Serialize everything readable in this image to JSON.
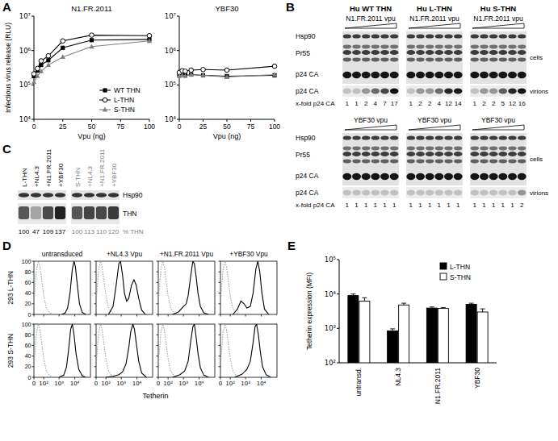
{
  "panel_labels": [
    "A",
    "B",
    "C",
    "D",
    "E"
  ],
  "chart_data": [
    {
      "type": "line",
      "title": "N1.FR.2011",
      "x_label": "Vpu (ng)",
      "y_label": "Infectious virus release (RLU)",
      "log": "y",
      "legend": "lower right",
      "xlim": [
        0,
        100
      ],
      "xticks": [
        0,
        25,
        50,
        75,
        100
      ],
      "ylim": [
        10000,
        10000000
      ],
      "yticks": [
        {
          "value": 10000,
          "label": "10⁴"
        },
        {
          "value": 100000,
          "label": "10⁵"
        },
        {
          "value": 1000000,
          "label": "10⁶"
        },
        {
          "value": 10000000,
          "label": "10⁷"
        }
      ],
      "x": [
        0,
        3.125,
        6.25,
        12.5,
        25,
        50,
        100
      ],
      "series": [
        {
          "name": "WT THN",
          "color": "#000000",
          "marker": "square",
          "values": [
            180000,
            260000,
            380000,
            520000,
            1200000,
            2000000,
            2100000
          ]
        },
        {
          "name": "L-THN",
          "color": "#000000",
          "marker": "open-circle",
          "values": [
            210000,
            300000,
            500000,
            700000,
            1900000,
            2800000,
            2700000
          ]
        },
        {
          "name": "S-THN",
          "color": "#808080",
          "marker": "triangle",
          "values": [
            120000,
            180000,
            250000,
            380000,
            650000,
            1300000,
            1900000
          ]
        }
      ]
    },
    {
      "type": "line",
      "title": "YBF30",
      "x_label": "Vpu (ng)",
      "log": "y",
      "xlim": [
        0,
        100
      ],
      "xticks": [
        0,
        25,
        50,
        75,
        100
      ],
      "ylim": [
        10000,
        10000000
      ],
      "yticks": [
        {
          "value": 10000,
          "label": "10⁴"
        },
        {
          "value": 100000,
          "label": "10⁵"
        },
        {
          "value": 1000000,
          "label": "10⁶"
        },
        {
          "value": 10000000,
          "label": "10⁷"
        }
      ],
      "x": [
        0,
        3.125,
        6.25,
        12.5,
        25,
        50,
        100
      ],
      "series": [
        {
          "color": "#000000",
          "marker": "square",
          "values": [
            200000,
            210000,
            190000,
            200000,
            190000,
            180000,
            190000
          ]
        },
        {
          "color": "#000000",
          "marker": "open-circle",
          "values": [
            230000,
            260000,
            250000,
            270000,
            280000,
            270000,
            350000
          ]
        },
        {
          "color": "#808080",
          "marker": "triangle",
          "values": [
            180000,
            190000,
            180000,
            200000,
            190000,
            170000,
            200000
          ]
        }
      ]
    },
    {
      "type": "line",
      "columns": [
        "untransduced",
        "+NL4.3 Vpu",
        "+N1.FR.2011 Vpu",
        "+YBF30 Vpu"
      ],
      "rows": [
        "293 L-THN",
        "293 S-THN"
      ],
      "x_label": "Tetherin",
      "log": "x",
      "xlim": [
        0,
        100000
      ],
      "xticks": [
        0,
        {
          "value": 100,
          "label": "10²"
        },
        {
          "value": 1000,
          "label": "10³"
        },
        {
          "value": 10000,
          "label": "10⁴"
        }
      ],
      "ylim": [
        0,
        100
      ],
      "yticks": [
        0,
        20,
        40,
        60,
        80,
        100
      ],
      "panels": [
        [
          {
            "series": [
              {
                "color": "#999999",
                "line_style": "dotted",
                "x": [
                  0,
                  10,
                  20,
                  35,
                  50,
                  70,
                  100,
                  150,
                  250,
                  500
                ],
                "values": [
                  20,
                  55,
                  85,
                  100,
                  90,
                  65,
                  35,
                  12,
                  3,
                  0
                ]
              },
              {
                "color": "#000000",
                "line_style": "solid",
                "x": [
                  1500,
                  2500,
                  3500,
                  5000,
                  7000,
                  9000,
                  11000,
                  14000,
                  20000,
                  30000,
                  50000
                ],
                "values": [
                  0,
                  3,
                  12,
                  40,
                  85,
                  100,
                  90,
                  60,
                  20,
                  4,
                  0
                ]
              }
            ]
          },
          {
            "series": [
              {
                "color": "#999999",
                "line_style": "dotted",
                "x": [
                  0,
                  10,
                  20,
                  35,
                  50,
                  70,
                  100,
                  150,
                  250,
                  500
                ],
                "values": [
                  20,
                  55,
                  85,
                  100,
                  90,
                  65,
                  35,
                  12,
                  3,
                  0
                ]
              },
              {
                "color": "#000000",
                "line_style": "solid",
                "x": [
                  150,
                  300,
                  500,
                  700,
                  900,
                  1200,
                  1600,
                  2200,
                  3000,
                  4500,
                  6500,
                  9000,
                  13000,
                  20000,
                  35000
                ],
                "values": [
                  0,
                  15,
                  60,
                  95,
                  100,
                  75,
                  40,
                  25,
                  30,
                  55,
                  65,
                  55,
                  30,
                  8,
                  0
                ]
              }
            ]
          },
          {
            "series": [
              {
                "color": "#999999",
                "line_style": "dotted",
                "x": [
                  0,
                  10,
                  20,
                  35,
                  50,
                  70,
                  100,
                  150,
                  250,
                  500
                ],
                "values": [
                  20,
                  55,
                  85,
                  100,
                  90,
                  65,
                  35,
                  12,
                  3,
                  0
                ]
              },
              {
                "color": "#000000",
                "line_style": "solid",
                "x": [
                  200,
                  500,
                  1000,
                  1500,
                  2000,
                  3000,
                  4000,
                  5000,
                  6500,
                  8500,
                  12000,
                  20000,
                  40000
                ],
                "values": [
                  0,
                  5,
                  15,
                  20,
                  35,
                  75,
                  100,
                  95,
                  70,
                  40,
                  15,
                  3,
                  0
                ]
              }
            ]
          },
          {
            "series": [
              {
                "color": "#999999",
                "line_style": "dotted",
                "x": [
                  0,
                  10,
                  20,
                  35,
                  50,
                  70,
                  100,
                  150,
                  250,
                  500
                ],
                "values": [
                  20,
                  55,
                  85,
                  100,
                  90,
                  65,
                  35,
                  12,
                  3,
                  0
                ]
              },
              {
                "color": "#000000",
                "line_style": "solid",
                "x": [
                  150,
                  300,
                  500,
                  800,
                  1200,
                  2000,
                  3000,
                  4500,
                  6000,
                  8000,
                  11000,
                  16000,
                  30000
                ],
                "values": [
                  0,
                  10,
                  25,
                  20,
                  12,
                  15,
                  40,
                  85,
                  100,
                  80,
                  40,
                  10,
                  0
                ]
              }
            ]
          }
        ],
        [
          {
            "series": [
              {
                "color": "#999999",
                "line_style": "dotted",
                "x": [
                  0,
                  10,
                  20,
                  35,
                  50,
                  70,
                  100,
                  150,
                  250,
                  500
                ],
                "values": [
                  20,
                  55,
                  85,
                  100,
                  90,
                  65,
                  35,
                  12,
                  3,
                  0
                ]
              },
              {
                "color": "#000000",
                "line_style": "solid",
                "x": [
                  1000,
                  2000,
                  3000,
                  4000,
                  5500,
                  7000,
                  9000,
                  12000,
                  18000,
                  30000,
                  50000
                ],
                "values": [
                  0,
                  4,
                  20,
                  50,
                  90,
                  100,
                  80,
                  45,
                  15,
                  3,
                  0
                ]
              }
            ]
          },
          {
            "series": [
              {
                "color": "#999999",
                "line_style": "dotted",
                "x": [
                  0,
                  10,
                  20,
                  35,
                  50,
                  70,
                  100,
                  150,
                  250,
                  500
                ],
                "values": [
                  20,
                  55,
                  85,
                  100,
                  90,
                  65,
                  35,
                  12,
                  3,
                  0
                ]
              },
              {
                "color": "#000000",
                "line_style": "solid",
                "x": [
                  100,
                  300,
                  700,
                  1200,
                  2000,
                  3000,
                  4000,
                  5500,
                  7000,
                  9000,
                  13000,
                  20000,
                  40000
                ],
                "values": [
                  0,
                  2,
                  5,
                  10,
                  25,
                  55,
                  85,
                  100,
                  90,
                  65,
                  30,
                  8,
                  0
                ]
              }
            ]
          },
          {
            "series": [
              {
                "color": "#999999",
                "line_style": "dotted",
                "x": [
                  0,
                  10,
                  20,
                  35,
                  50,
                  70,
                  100,
                  150,
                  250,
                  500
                ],
                "values": [
                  20,
                  55,
                  85,
                  100,
                  90,
                  65,
                  35,
                  12,
                  3,
                  0
                ]
              },
              {
                "color": "#000000",
                "line_style": "solid",
                "x": [
                  200,
                  600,
                  1200,
                  2000,
                  3000,
                  4000,
                  5000,
                  6500,
                  8500,
                  12000,
                  20000,
                  40000
                ],
                "values": [
                  0,
                  5,
                  12,
                  30,
                  70,
                  95,
                  100,
                  75,
                  45,
                  18,
                  4,
                  0
                ]
              }
            ]
          },
          {
            "series": [
              {
                "color": "#999999",
                "line_style": "dotted",
                "x": [
                  0,
                  10,
                  20,
                  35,
                  50,
                  70,
                  100,
                  150,
                  250,
                  500
                ],
                "values": [
                  20,
                  55,
                  85,
                  100,
                  90,
                  65,
                  35,
                  12,
                  3,
                  0
                ]
              },
              {
                "color": "#000000",
                "line_style": "solid",
                "x": [
                  200,
                  600,
                  1200,
                  2000,
                  3000,
                  4000,
                  5000,
                  6500,
                  8500,
                  12000,
                  20000,
                  40000
                ],
                "values": [
                  0,
                  6,
                  15,
                  30,
                  65,
                  95,
                  100,
                  80,
                  50,
                  20,
                  5,
                  0
                ]
              }
            ]
          }
        ]
      ]
    },
    {
      "type": "bar",
      "y_label": "Tetherin expression (MFI)",
      "log": "y",
      "legend": "upper right",
      "categories": [
        "untransd.",
        "NL4.3",
        "N1.FR.2011",
        "YBF30"
      ],
      "ylim": [
        100,
        100000
      ],
      "yticks": [
        {
          "value": 100,
          "label": "10²"
        },
        {
          "value": 1000,
          "label": "10³"
        },
        {
          "value": 10000,
          "label": "10⁴"
        },
        {
          "value": 100000,
          "label": "10⁵"
        }
      ],
      "series": [
        {
          "name": "L-THN",
          "color": "#000000",
          "values": [
            9000,
            850,
            3900,
            5000
          ],
          "errors": [
            1000,
            120,
            300,
            400
          ]
        },
        {
          "name": "S-THN",
          "color": "#ffffff",
          "values": [
            6200,
            4800,
            3800,
            3000
          ],
          "errors": [
            1600,
            600,
            250,
            700
          ]
        }
      ]
    }
  ],
  "blots": {
    "b": {
      "row_labels": [
        "Hsp90",
        "Pr55",
        "p24 CA",
        "p24 CA"
      ],
      "side_labels": [
        "cells",
        "virions"
      ],
      "fold_label": "x-fold p24 CA",
      "groups": [
        {
          "title": "Hu WT THN",
          "vpu": "N1.FR.2011 vpu",
          "fold": [
            1,
            1,
            2,
            4,
            7,
            17
          ]
        },
        {
          "title": "Hu L-THN",
          "vpu": "N1.FR.2011 vpu",
          "fold": [
            1,
            2,
            2,
            4,
            12,
            14
          ]
        },
        {
          "title": "Hu S-THN",
          "vpu": "N1.FR.2011 vpu",
          "fold": [
            1,
            2,
            2,
            5,
            12,
            16
          ]
        },
        {
          "vpu": "YBF30 vpu",
          "fold": [
            1,
            1,
            1,
            1,
            1,
            1
          ]
        },
        {
          "vpu": "YBF30 vpu",
          "fold": [
            1,
            1,
            1,
            1,
            1,
            1
          ]
        },
        {
          "vpu": "YBF30 vpu",
          "fold": [
            1,
            1,
            1,
            1,
            1,
            2
          ]
        }
      ]
    },
    "c": {
      "row_labels": [
        "Hsp90",
        "THN"
      ],
      "percent_label": "% THN",
      "lanes": [
        {
          "label": "L-THN",
          "percent": 100,
          "color": "#000000"
        },
        {
          "label": "+NL4.3",
          "percent": 47,
          "color": "#000000"
        },
        {
          "label": "+N1.FR.2011",
          "percent": 109,
          "color": "#000000"
        },
        {
          "label": "+YBF30",
          "percent": 137,
          "color": "#000000"
        },
        {
          "label": "S-THN",
          "percent": 100,
          "color": "#808080"
        },
        {
          "label": "+NL4.3",
          "percent": 113,
          "color": "#808080"
        },
        {
          "label": "+N1.FR.2011",
          "percent": 110,
          "color": "#808080"
        },
        {
          "label": "+YBF30",
          "percent": 120,
          "color": "#808080"
        }
      ]
    }
  }
}
